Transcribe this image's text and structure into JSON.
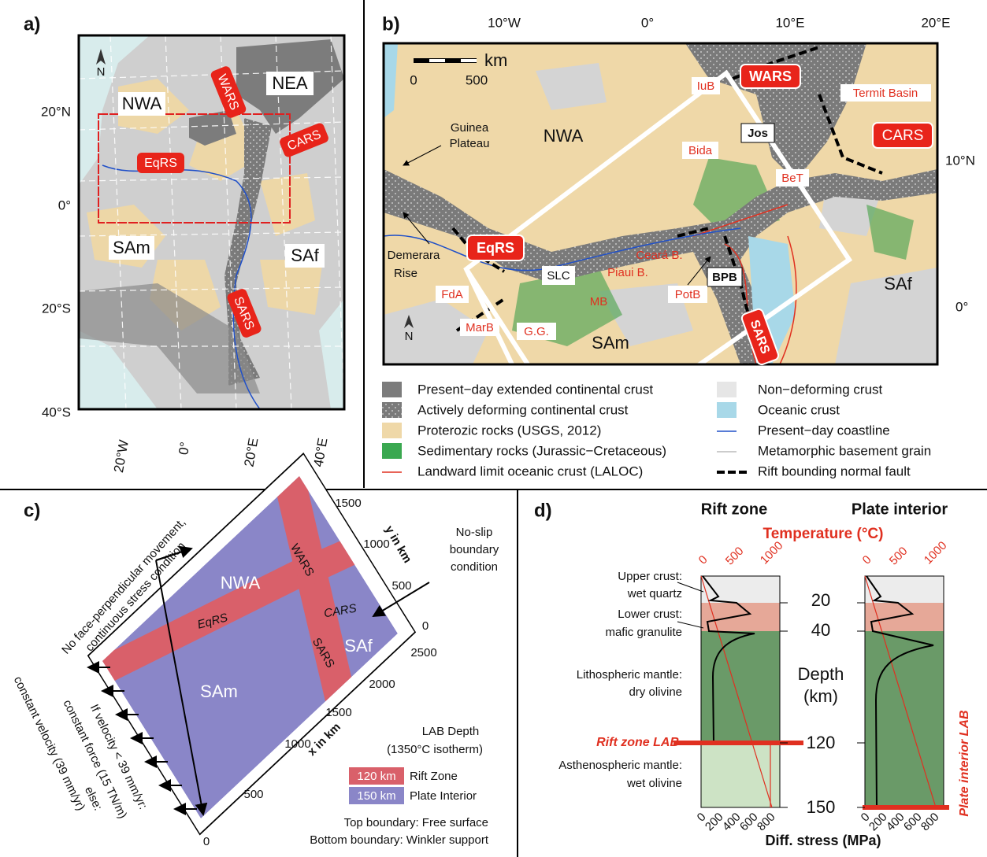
{
  "panel_a": {
    "label": "a)",
    "regions": [
      "NWA",
      "NEA",
      "SAm",
      "SAf"
    ],
    "rifts": [
      "WARS",
      "CARS",
      "EqRS",
      "SARS"
    ],
    "lat_labels": [
      "20°N",
      "0°",
      "20°S",
      "40°S"
    ],
    "lon_labels": [
      "20°W",
      "0°",
      "20°E",
      "40°E"
    ],
    "north": "N"
  },
  "panel_b": {
    "label": "b)",
    "lon_labels": [
      "10°W",
      "0°",
      "10°E",
      "20°E"
    ],
    "lat_labels": [
      "10°N",
      "0°"
    ],
    "scale": {
      "unit": "km",
      "ticks": [
        "0",
        "500"
      ]
    },
    "regions": [
      "NWA",
      "SAm",
      "SAf"
    ],
    "rifts": [
      "WARS",
      "CARS",
      "EqRS",
      "SARS"
    ],
    "boxed": [
      "Jos",
      "BPB",
      "SLC"
    ],
    "red_labels": [
      "IuB",
      "Termit Basin",
      "Bida",
      "BeT",
      "Ceará B.",
      "Piaui B.",
      "PotB",
      "FdA",
      "MarB",
      "G.G.",
      "MB"
    ],
    "guinea": [
      "Guinea",
      "Plateau"
    ],
    "demerara": [
      "Demerara",
      "Rise"
    ],
    "north": "N"
  },
  "legend": [
    "Present−day extended continental crust",
    "Actively deforming continental crust",
    "Proterozic rocks (USGS, 2012)",
    "Sedimentary rocks (Jurassic−Cretaceous)",
    "Landward limit oceanic crust (LALOC)",
    "Non−deforming crust",
    "Oceanic crust",
    "Present−day coastline",
    "Metamorphic basement grain",
    "Rift bounding normal fault"
  ],
  "panel_c": {
    "label": "c)",
    "regions": [
      "NWA",
      "SAm",
      "SAf"
    ],
    "rifts": [
      "WARS",
      "EqRS",
      "CARS",
      "SARS"
    ],
    "y_axis_title": "y in km",
    "y_ticks": [
      "0",
      "500",
      "1000",
      "1500"
    ],
    "x_axis_title": "x in km",
    "x_ticks": [
      "0",
      "500",
      "1000",
      "1500",
      "2000",
      "2500"
    ],
    "top_note": [
      "No face-perpendicular movement,",
      "continuous stress condition"
    ],
    "right_note": [
      "No-slip",
      "boundary",
      "condition"
    ],
    "left_note": [
      "If velocity < 39 mm/yr:",
      "constant force (15 TN/m)",
      "else:",
      "constant velocity (39 mm/yr)"
    ],
    "lab_title": [
      "LAB Depth",
      "(1350°C isotherm)"
    ],
    "lab_legend": [
      {
        "depth": "120 km",
        "label": "Rift Zone"
      },
      {
        "depth": "150 km",
        "label": "Plate Interior"
      }
    ],
    "boundaries": [
      "Top  boundary: Free surface",
      "Bottom boundary: Winkler support"
    ]
  },
  "panel_d": {
    "label": "d)",
    "columns": [
      "Rift zone",
      "Plate interior"
    ],
    "temperature_title": "Temperature (°C)",
    "temp_ticks": [
      "0",
      "500",
      "1000"
    ],
    "stress_ticks": [
      "0",
      "200",
      "400",
      "600",
      "800"
    ],
    "stress_title": "Diff. stress (MPa)",
    "depth_title": [
      "Depth",
      "(km)"
    ],
    "depth_ticks": [
      "20",
      "40",
      "120",
      "150"
    ],
    "layers": [
      [
        "Upper crust:",
        "wet quartz"
      ],
      [
        "Lower crust:",
        "mafic granulite"
      ],
      [
        "Lithospheric mantle:",
        "dry olivine"
      ],
      [
        "Asthenospheric mantle:",
        "wet olivine"
      ]
    ],
    "lab_labels": [
      "Rift zone LAB",
      "Plate interior LAB"
    ]
  }
}
